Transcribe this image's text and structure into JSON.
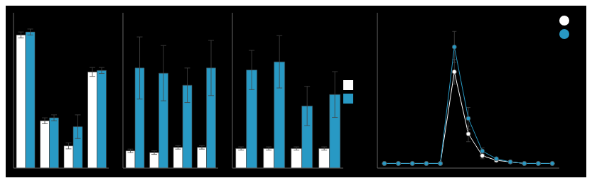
{
  "chart_data": [
    {
      "type": "bar",
      "categories": [
        null,
        null,
        null,
        null
      ],
      "series": [
        {
          "color": "#ffffff",
          "values": [
            90,
            32,
            15,
            65
          ],
          "errors": [
            2,
            2,
            2,
            3
          ]
        },
        {
          "color": "#2899c4",
          "values": [
            92,
            34,
            28,
            66
          ],
          "errors": [
            2,
            2,
            8,
            2
          ]
        }
      ],
      "ylim": [
        0,
        105
      ],
      "tick_labels": false
    },
    {
      "type": "bar",
      "categories": [
        null,
        null,
        null,
        null
      ],
      "series": [
        {
          "color": "#ffffff",
          "values": [
            10,
            9,
            12,
            12
          ],
          "errors": [
            1,
            1,
            1,
            1
          ]
        },
        {
          "color": "#2899c4",
          "values": [
            58,
            55,
            48,
            58
          ],
          "errors": [
            18,
            16,
            10,
            16
          ]
        }
      ],
      "ylim": [
        0,
        90
      ],
      "tick_labels": false
    },
    {
      "type": "bar",
      "categories": [
        null,
        null,
        null,
        null
      ],
      "series": [
        {
          "color": "#ffffff",
          "values": [
            12,
            12,
            12,
            12
          ],
          "errors": [
            1,
            1,
            1,
            1
          ]
        },
        {
          "color": "#2899c4",
          "values": [
            60,
            65,
            38,
            45
          ],
          "errors": [
            12,
            16,
            12,
            14
          ]
        }
      ],
      "ylim": [
        0,
        95
      ],
      "tick_labels": false,
      "legend": "right"
    },
    {
      "type": "line",
      "x": [
        0,
        1,
        2,
        3,
        4,
        5,
        6,
        7,
        8,
        9,
        10,
        11,
        12
      ],
      "series": [
        {
          "color": "#ffffff",
          "marker": "circle",
          "values": [
            3,
            3,
            3,
            3,
            3,
            62,
            22,
            8,
            5,
            4,
            3,
            3,
            3
          ],
          "errors": [
            0.5,
            0.5,
            0.5,
            0.5,
            0.5,
            8,
            5,
            2,
            1,
            0.5,
            0.5,
            0.5,
            0.5
          ]
        },
        {
          "color": "#2899c4",
          "marker": "circle",
          "values": [
            3,
            3,
            3,
            3,
            3,
            78,
            32,
            11,
            6,
            4,
            3,
            3,
            3
          ],
          "errors": [
            0.5,
            0.5,
            0.5,
            0.5,
            0.5,
            10,
            7,
            2,
            1,
            0.5,
            0.5,
            0.5,
            0.5
          ]
        }
      ],
      "xlim": [
        -0.5,
        12.5
      ],
      "ylim": [
        0,
        100
      ],
      "tick_labels": false,
      "legend": "upper right"
    }
  ]
}
